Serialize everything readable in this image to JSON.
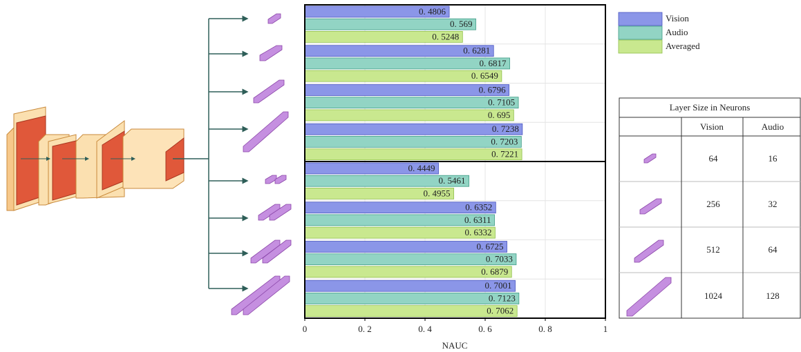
{
  "chart_data": {
    "type": "hbar-grouped",
    "xlabel": "NAUC",
    "categories": [
      null,
      null,
      null,
      null,
      null,
      null,
      null,
      null
    ],
    "series": [
      {
        "name": "Vision",
        "color": "#8b96e8",
        "values": [
          0.4806,
          0.6281,
          0.6796,
          0.7238,
          0.4449,
          0.6352,
          0.6725,
          0.7001
        ],
        "value_labels": [
          "0. 4806",
          "0. 6281",
          "0. 6796",
          "0. 7238",
          "0. 4449",
          "0. 6352",
          "0. 6725",
          "0. 7001"
        ]
      },
      {
        "name": "Audio",
        "color": "#92d4c4",
        "values": [
          0.569,
          0.6817,
          0.7105,
          0.7203,
          0.5461,
          0.6311,
          0.7033,
          0.7123
        ],
        "value_labels": [
          "0. 569",
          "0. 6817",
          "0. 7105",
          "0. 7203",
          "0. 5461",
          "0. 6311",
          "0. 7033",
          "0. 7123"
        ]
      },
      {
        "name": "Averaged",
        "color": "#c9e88f",
        "values": [
          0.5248,
          0.6549,
          0.695,
          0.7221,
          0.4955,
          0.6332,
          0.6879,
          0.7062
        ],
        "value_labels": [
          "0. 5248",
          "0. 6549",
          "0. 695",
          "0. 7221",
          "0. 4955",
          "0. 6332",
          "0. 6879",
          "0. 7062"
        ]
      }
    ],
    "xlim": [
      0,
      1
    ],
    "xticks": [
      0,
      {
        "value": 0.2,
        "label": "0. 2"
      },
      {
        "value": 0.4,
        "label": "0. 4"
      },
      {
        "value": 0.6,
        "label": "0. 6"
      },
      {
        "value": 0.8,
        "label": "0. 8"
      },
      1
    ],
    "grid": true,
    "legend": "right"
  },
  "table": {
    "title": "Layer Size in Neurons",
    "header": [
      "Vision",
      "Audio"
    ],
    "rows": [
      [
        "64",
        "16"
      ],
      [
        "256",
        "32"
      ],
      [
        "512",
        "64"
      ],
      [
        "1024",
        "128"
      ]
    ]
  }
}
